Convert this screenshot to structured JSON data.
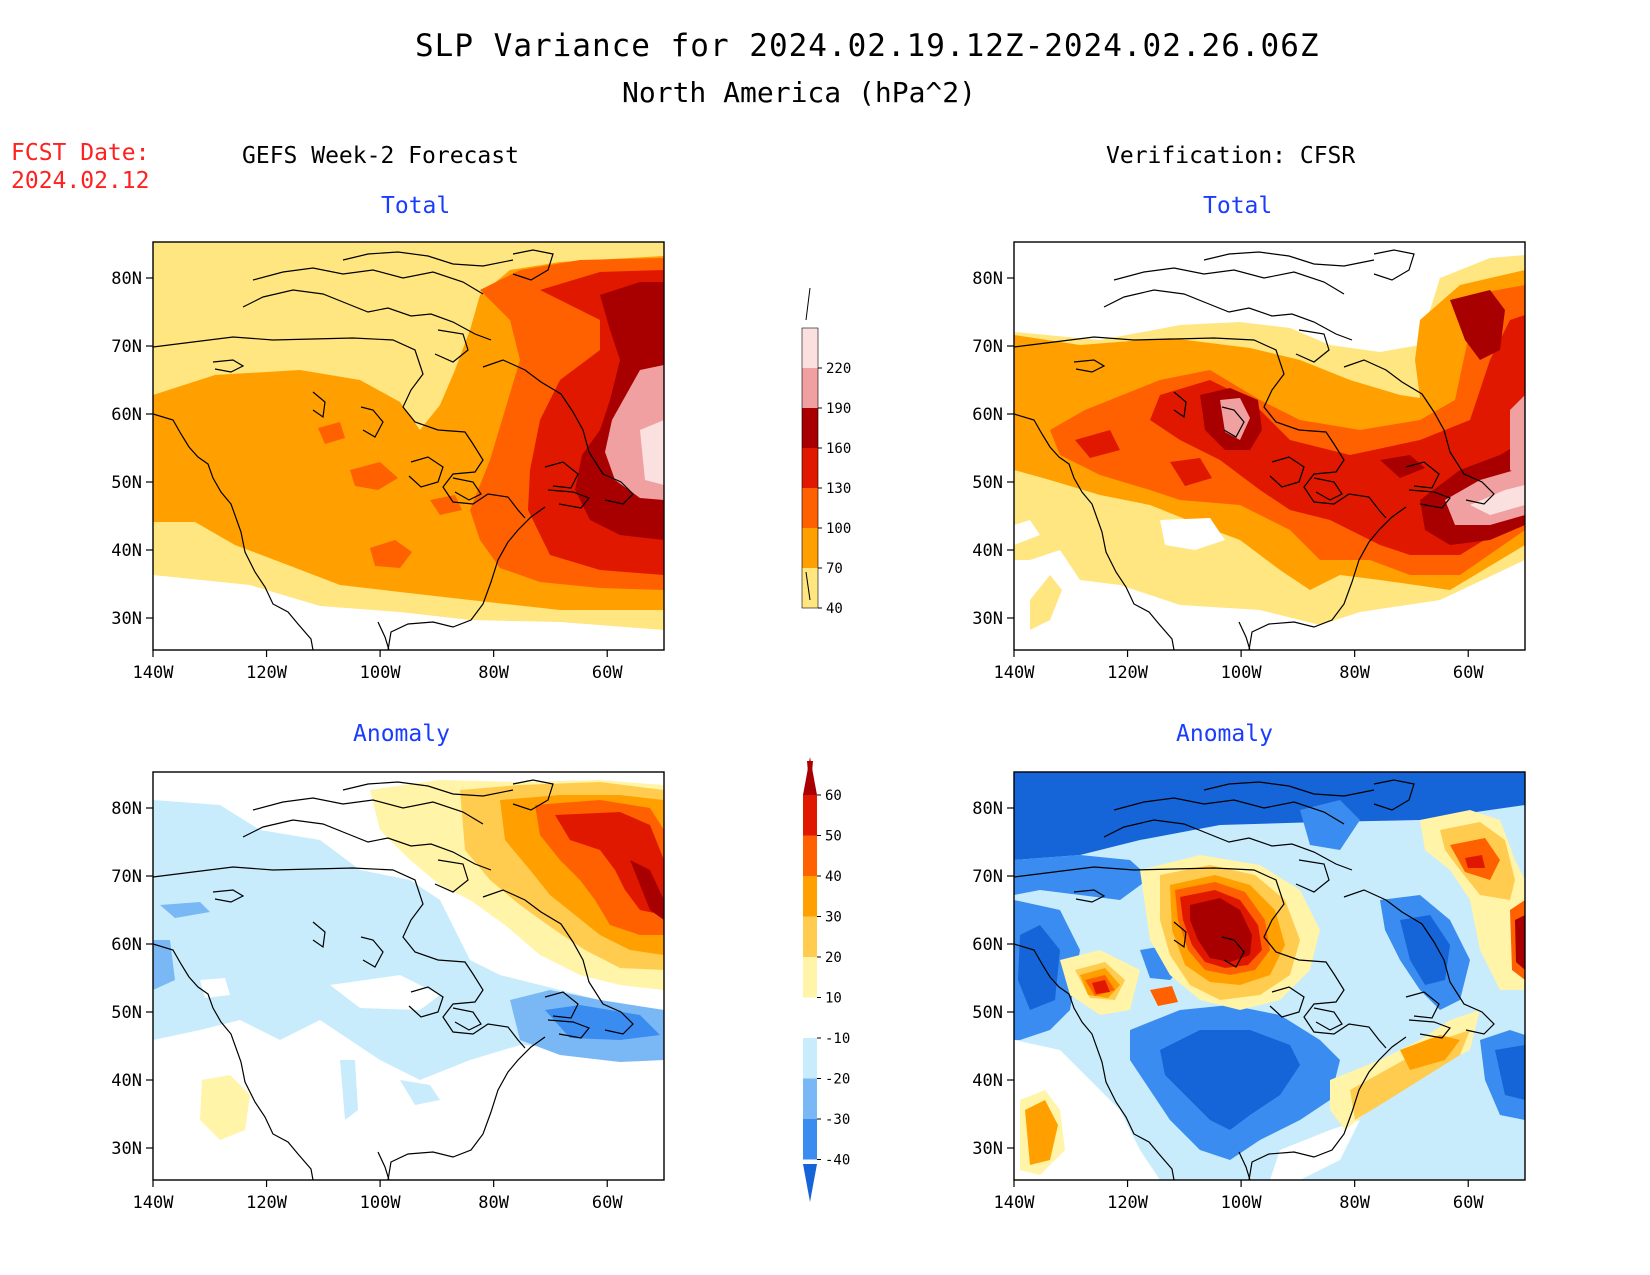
{
  "header": {
    "title": "SLP Variance for 2024.02.19.12Z-2024.02.26.06Z",
    "subtitle": "North America (hPa^2)",
    "fcst_label": "FCST Date:",
    "fcst_date": "2024.02.12"
  },
  "columns": {
    "left": "GEFS Week-2 Forecast",
    "right": "Verification: CFSR"
  },
  "panels": {
    "top_left": "Total",
    "top_right": "Total",
    "bottom_left": "Anomaly",
    "bottom_right": "Anomaly"
  },
  "axes": {
    "lon_ticks": [
      "140W",
      "120W",
      "100W",
      "80W",
      "60W"
    ],
    "lat_ticks": [
      "80N",
      "70N",
      "60N",
      "50N",
      "40N",
      "30N"
    ]
  },
  "colorbars": {
    "total": {
      "levels": [
        "40",
        "70",
        "100",
        "130",
        "160",
        "190",
        "220"
      ],
      "colors": [
        "#ffe680",
        "#ffa000",
        "#ff6000",
        "#e01800",
        "#a80000",
        "#f0a0a0",
        "#fbe0e0"
      ]
    },
    "anomaly": {
      "levels": [
        "-40",
        "-30",
        "-20",
        "-10",
        "10",
        "20",
        "30",
        "40",
        "50",
        "60"
      ],
      "colors": [
        "#1565d8",
        "#3a8cf0",
        "#7ab8f5",
        "#c8ecfc",
        "#ffffff",
        "#fff4a8",
        "#ffcc50",
        "#ffa000",
        "#ff6000",
        "#e01800",
        "#a80000"
      ]
    }
  }
}
